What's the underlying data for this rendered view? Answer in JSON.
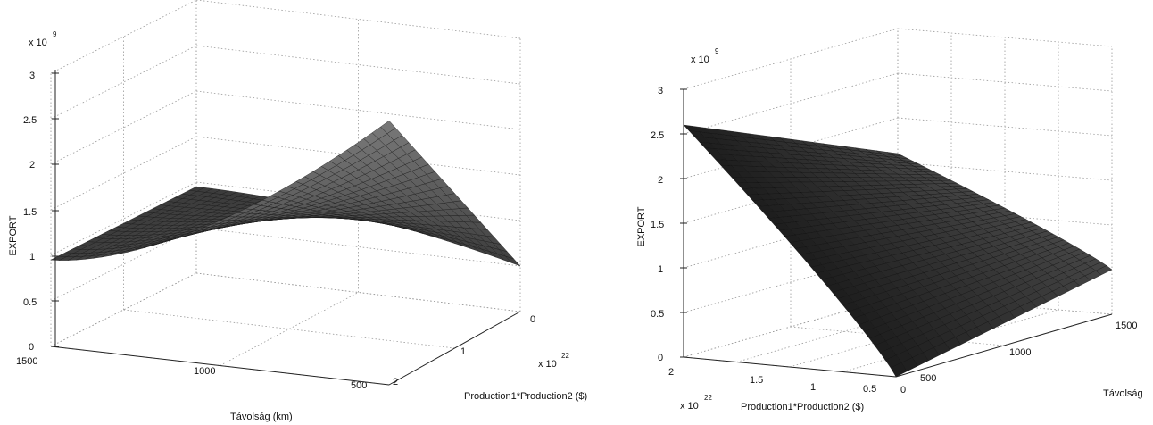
{
  "chart_data": [
    {
      "type": "surface3d",
      "title": "",
      "zlabel": "EXPORT",
      "xlabel": "Távolság (km)",
      "ylabel": "Production1*Production2 ($)",
      "z_multiplier": "x 10",
      "z_multiplier_exp": "9",
      "y_multiplier": "x 10",
      "y_multiplier_exp": "22",
      "z_ticks": [
        "0",
        "0.5",
        "1",
        "1.5",
        "2",
        "2.5",
        "3"
      ],
      "x_ticks": [
        "1500",
        "1000",
        "500"
      ],
      "y_ticks": [
        "0",
        "1",
        "2"
      ],
      "zlim": [
        0,
        3
      ],
      "xlim": [
        500,
        1500
      ],
      "ylim": [
        0,
        2
      ],
      "grid": true,
      "surface_samples": [
        {
          "distance": 1500,
          "production": 0,
          "export": 0.95
        },
        {
          "distance": 1000,
          "production": 0,
          "export": 0.95
        },
        {
          "distance": 500,
          "production": 0,
          "export": 0.5
        },
        {
          "distance": 500,
          "production": 2,
          "export": 2.9
        }
      ]
    },
    {
      "type": "surface3d",
      "title": "",
      "zlabel": "EXPORT",
      "xlabel": "Production1*Production2 ($)",
      "ylabel": "Távolság",
      "z_multiplier": "x 10",
      "z_multiplier_exp": "9",
      "x_multiplier": "x 10",
      "x_multiplier_exp": "22",
      "z_ticks": [
        "0",
        "0.5",
        "1",
        "1.5",
        "2",
        "2.5",
        "3"
      ],
      "x_ticks": [
        "2",
        "1.5",
        "1",
        "0.5",
        "0"
      ],
      "y_ticks": [
        "500",
        "1000",
        "1500"
      ],
      "zlim": [
        0,
        3
      ],
      "xlim": [
        0,
        2
      ],
      "ylim": [
        500,
        1500
      ],
      "grid": true,
      "surface_samples": [
        {
          "production": 2,
          "distance": 500,
          "export": 2.6
        },
        {
          "production": 2,
          "distance": 1500,
          "export": 1.6
        },
        {
          "production": 0,
          "distance": 500,
          "export": 0.0
        },
        {
          "production": 0,
          "distance": 1500,
          "export": 0.5
        }
      ]
    }
  ]
}
